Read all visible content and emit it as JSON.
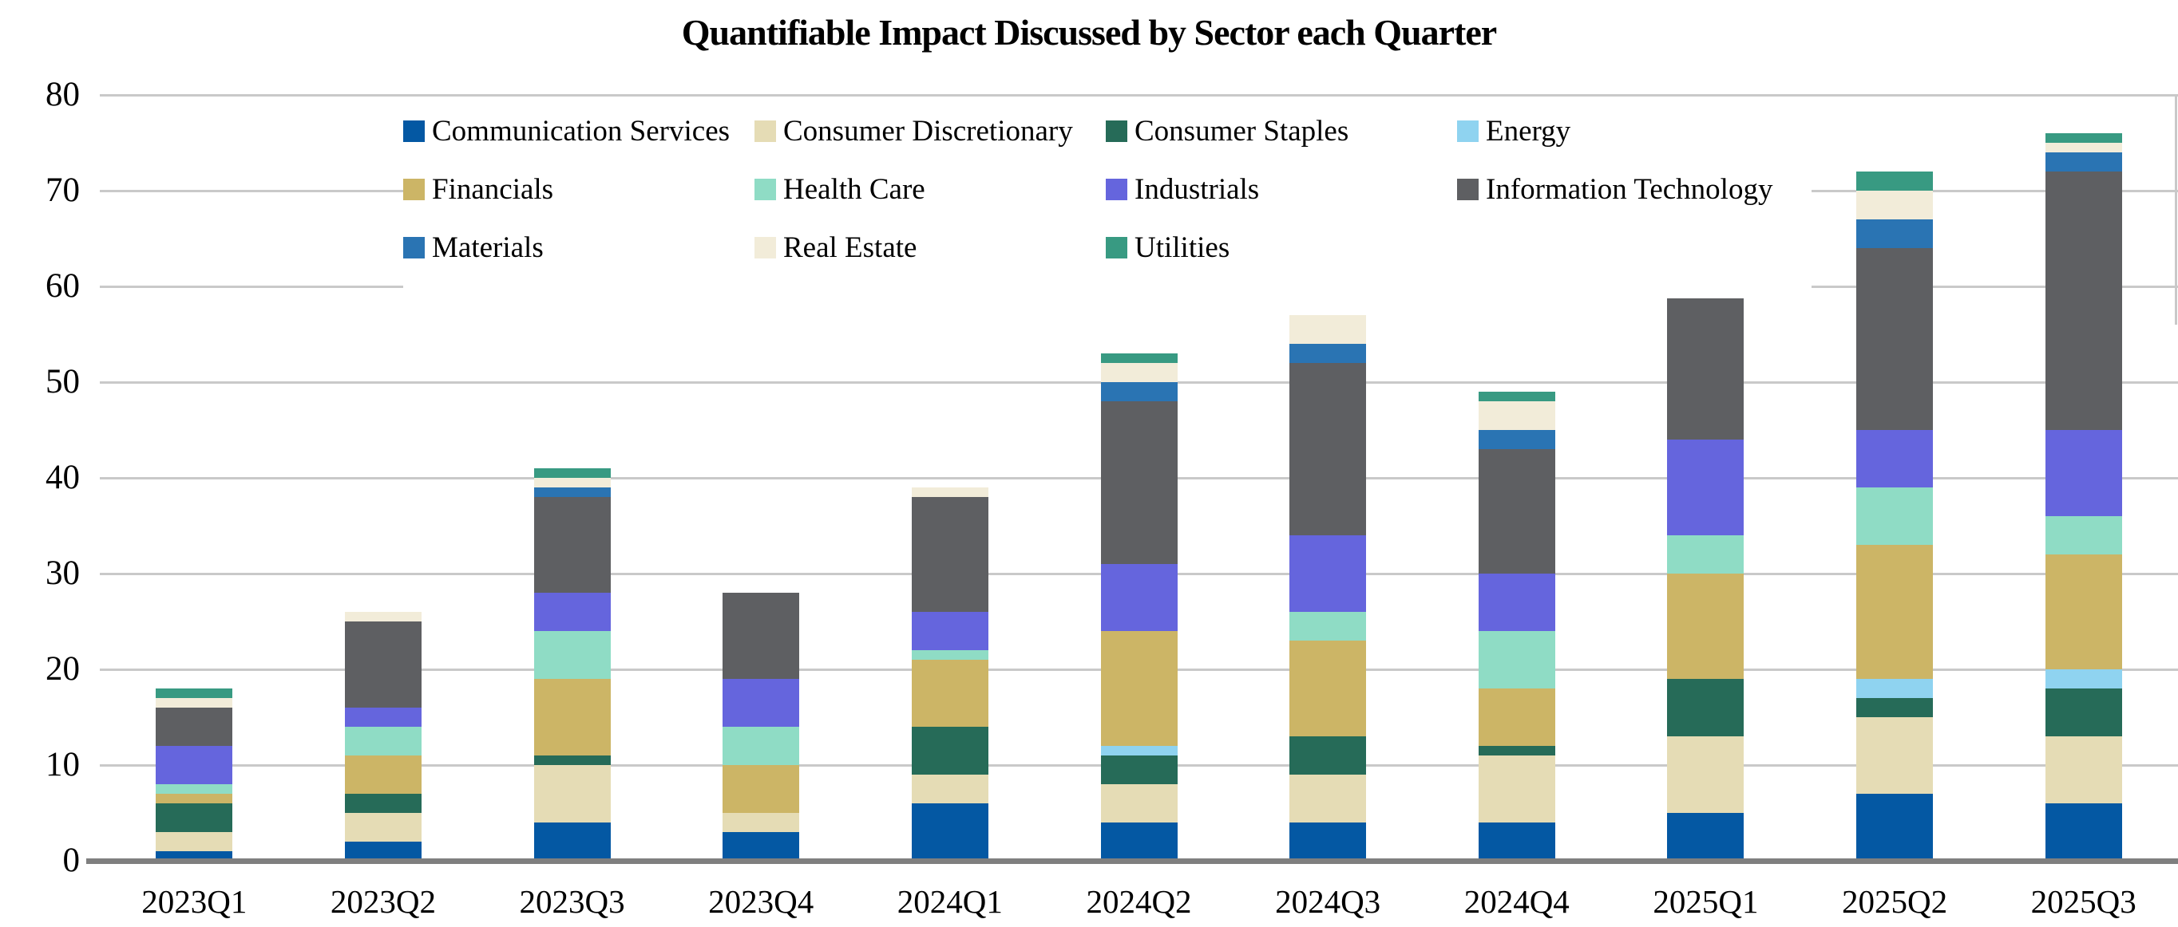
{
  "chart_data": {
    "type": "bar",
    "stacked": true,
    "title": "Quantifiable Impact Discussed by Sector each Quarter",
    "categories": [
      "2023Q1",
      "2023Q2",
      "2023Q3",
      "2023Q4",
      "2024Q1",
      "2024Q2",
      "2024Q3",
      "2024Q4",
      "2025Q1",
      "2025Q2",
      "2025Q3"
    ],
    "series": [
      {
        "name": "Communication Services",
        "color": "#0458A3",
        "values": [
          1,
          2,
          4,
          3,
          6,
          4,
          4,
          4,
          5,
          7,
          6
        ]
      },
      {
        "name": "Consumer Discretionary",
        "color": "#E5DCB5",
        "values": [
          2,
          3,
          6,
          2,
          3,
          4,
          5,
          7,
          8,
          8,
          7
        ]
      },
      {
        "name": "Consumer Staples",
        "color": "#266B58",
        "values": [
          3,
          2,
          1,
          0,
          5,
          3,
          4,
          1,
          6,
          2,
          5
        ]
      },
      {
        "name": "Energy",
        "color": "#8FD3F0",
        "values": [
          0,
          0,
          0,
          0,
          0,
          1,
          0,
          0,
          0,
          2,
          2
        ]
      },
      {
        "name": "Financials",
        "color": "#CCB566",
        "values": [
          1,
          4,
          8,
          5,
          7,
          12,
          10,
          6,
          11,
          14,
          12
        ]
      },
      {
        "name": "Health Care",
        "color": "#8FDCC5",
        "values": [
          1,
          3,
          5,
          4,
          1,
          0,
          3,
          6,
          4,
          6,
          4
        ]
      },
      {
        "name": "Industrials",
        "color": "#6565DD",
        "values": [
          4,
          2,
          4,
          5,
          4,
          7,
          8,
          6,
          10,
          6,
          9
        ]
      },
      {
        "name": "Information Technology",
        "color": "#5E5F62",
        "values": [
          4,
          9,
          10,
          9,
          12,
          17,
          18,
          13,
          15,
          19,
          27
        ]
      },
      {
        "name": "Materials",
        "color": "#2A74B3",
        "values": [
          0,
          0,
          1,
          0,
          0,
          2,
          2,
          2,
          1,
          3,
          2
        ]
      },
      {
        "name": "Real Estate",
        "color": "#F2ECD9",
        "values": [
          1,
          1,
          1,
          0,
          1,
          2,
          3,
          3,
          1,
          3,
          1
        ]
      },
      {
        "name": "Utilities",
        "color": "#389A82",
        "values": [
          1,
          0,
          1,
          0,
          0,
          1,
          0,
          1,
          1,
          2,
          1
        ]
      }
    ],
    "xlabel": "",
    "ylabel": "",
    "ylim": [
      0,
      80
    ],
    "ytick_step": 10,
    "yticks": [
      0,
      10,
      20,
      30,
      40,
      50,
      60,
      70,
      80
    ],
    "grid": true,
    "legend_position": "top-center",
    "legend_columns": 4
  },
  "colors": {
    "background": "#FFFFFF",
    "gridline": "#C9C9C9",
    "axis_line": "#7F7F7F",
    "text": "#000000"
  }
}
